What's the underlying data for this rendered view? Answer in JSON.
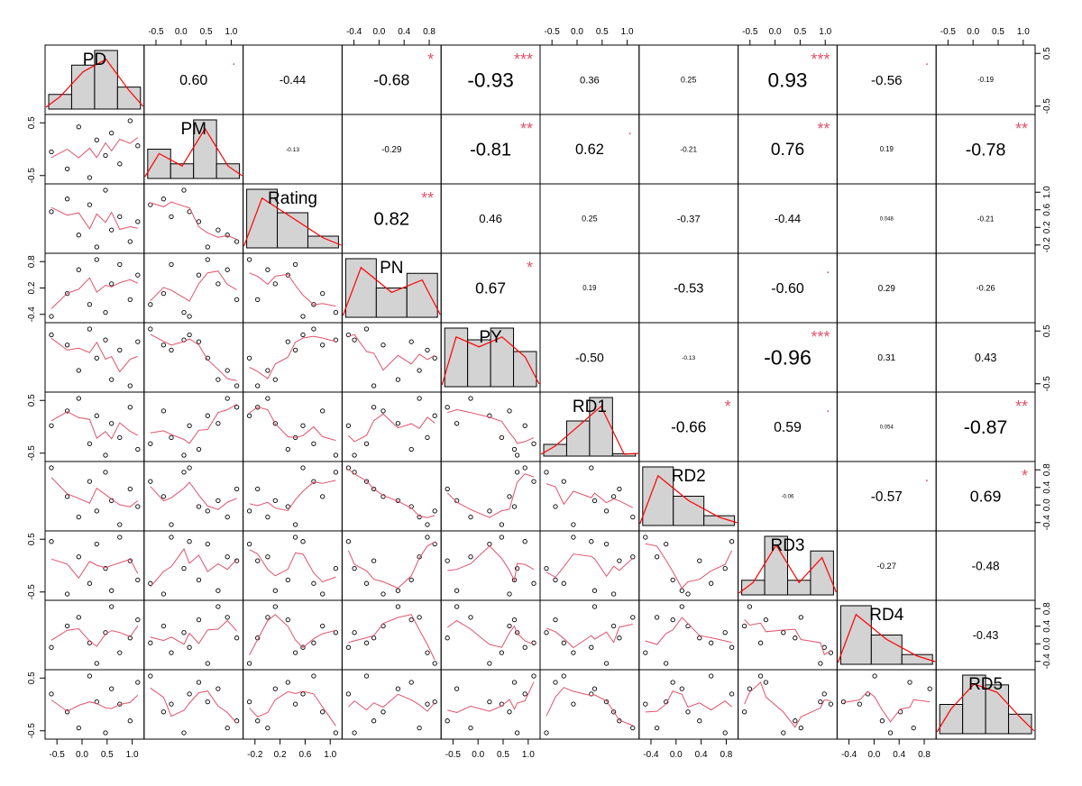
{
  "chart_data": {
    "type": "correlation-matrix",
    "variables": [
      "PD",
      "PM",
      "Rating",
      "PN",
      "PY",
      "RD1",
      "RD2",
      "RD3",
      "RD4",
      "RD5"
    ],
    "correlations": [
      {
        "i": 0,
        "j": 1,
        "value": "0.60",
        "stars": "."
      },
      {
        "i": 0,
        "j": 2,
        "value": "-0.44",
        "stars": ""
      },
      {
        "i": 0,
        "j": 3,
        "value": "-0.68",
        "stars": "*"
      },
      {
        "i": 0,
        "j": 4,
        "value": "-0.93",
        "stars": "***"
      },
      {
        "i": 0,
        "j": 5,
        "value": "0.36",
        "stars": ""
      },
      {
        "i": 0,
        "j": 6,
        "value": "0.25",
        "stars": ""
      },
      {
        "i": 0,
        "j": 7,
        "value": "0.93",
        "stars": "***"
      },
      {
        "i": 0,
        "j": 8,
        "value": "-0.56",
        "stars": "."
      },
      {
        "i": 0,
        "j": 9,
        "value": "-0.19",
        "stars": ""
      },
      {
        "i": 1,
        "j": 2,
        "value": "-0.13",
        "stars": ""
      },
      {
        "i": 1,
        "j": 3,
        "value": "-0.29",
        "stars": ""
      },
      {
        "i": 1,
        "j": 4,
        "value": "-0.81",
        "stars": "**"
      },
      {
        "i": 1,
        "j": 5,
        "value": "0.62",
        "stars": "."
      },
      {
        "i": 1,
        "j": 6,
        "value": "-0.21",
        "stars": ""
      },
      {
        "i": 1,
        "j": 7,
        "value": "0.76",
        "stars": "**"
      },
      {
        "i": 1,
        "j": 8,
        "value": "0.19",
        "stars": ""
      },
      {
        "i": 1,
        "j": 9,
        "value": "-0.78",
        "stars": "**"
      },
      {
        "i": 2,
        "j": 3,
        "value": "0.82",
        "stars": "**"
      },
      {
        "i": 2,
        "j": 4,
        "value": "0.46",
        "stars": ""
      },
      {
        "i": 2,
        "j": 5,
        "value": "0.25",
        "stars": ""
      },
      {
        "i": 2,
        "j": 6,
        "value": "-0.37",
        "stars": ""
      },
      {
        "i": 2,
        "j": 7,
        "value": "-0.44",
        "stars": ""
      },
      {
        "i": 2,
        "j": 8,
        "value": "0.048",
        "stars": ""
      },
      {
        "i": 2,
        "j": 9,
        "value": "-0.21",
        "stars": ""
      },
      {
        "i": 3,
        "j": 4,
        "value": "0.67",
        "stars": "*"
      },
      {
        "i": 3,
        "j": 5,
        "value": "0.19",
        "stars": ""
      },
      {
        "i": 3,
        "j": 6,
        "value": "-0.53",
        "stars": ""
      },
      {
        "i": 3,
        "j": 7,
        "value": "-0.60",
        "stars": "."
      },
      {
        "i": 3,
        "j": 8,
        "value": "0.29",
        "stars": ""
      },
      {
        "i": 3,
        "j": 9,
        "value": "-0.26",
        "stars": ""
      },
      {
        "i": 4,
        "j": 5,
        "value": "-0.50",
        "stars": ""
      },
      {
        "i": 4,
        "j": 6,
        "value": "-0.13",
        "stars": ""
      },
      {
        "i": 4,
        "j": 7,
        "value": "-0.96",
        "stars": "***"
      },
      {
        "i": 4,
        "j": 8,
        "value": "0.31",
        "stars": ""
      },
      {
        "i": 4,
        "j": 9,
        "value": "0.43",
        "stars": ""
      },
      {
        "i": 5,
        "j": 6,
        "value": "-0.66",
        "stars": "*"
      },
      {
        "i": 5,
        "j": 7,
        "value": "0.59",
        "stars": "."
      },
      {
        "i": 5,
        "j": 8,
        "value": "0.054",
        "stars": ""
      },
      {
        "i": 5,
        "j": 9,
        "value": "-0.87",
        "stars": "**"
      },
      {
        "i": 6,
        "j": 7,
        "value": "-0.06",
        "stars": ""
      },
      {
        "i": 6,
        "j": 8,
        "value": "-0.57",
        "stars": "."
      },
      {
        "i": 6,
        "j": 9,
        "value": "0.69",
        "stars": "*"
      },
      {
        "i": 7,
        "j": 8,
        "value": "-0.27",
        "stars": ""
      },
      {
        "i": 7,
        "j": 9,
        "value": "-0.48",
        "stars": ""
      },
      {
        "i": 8,
        "j": 9,
        "value": "-0.43",
        "stars": ""
      }
    ],
    "histograms": [
      [
        2,
        6,
        8,
        3
      ],
      [
        2,
        1,
        4,
        1
      ],
      [
        5,
        3,
        1
      ],
      [
        4,
        2,
        3
      ],
      [
        5,
        4,
        5,
        3
      ],
      [
        1,
        3,
        5,
        0.2
      ],
      [
        6,
        3,
        1
      ],
      [
        1,
        4,
        1,
        3
      ],
      [
        6,
        3,
        1
      ],
      [
        3,
        6,
        5,
        2
      ]
    ],
    "axis_ticks": [
      [
        "-0.5",
        "0.0",
        "0.5",
        "1.0"
      ],
      [
        "-0.5",
        "0.0",
        "0.5",
        "1.0"
      ],
      [
        "-0.2",
        "0.2",
        "0.6",
        "1.0"
      ],
      [
        "-0.4",
        "0.0",
        "0.4",
        "0.8"
      ],
      [
        "-0.5",
        "0.0",
        "0.5",
        "1.0"
      ],
      [
        "-0.5",
        "0.0",
        "0.5",
        "1.0"
      ],
      [
        "-0.4",
        "0.0",
        "0.4",
        "0.8"
      ],
      [
        "-0.5",
        "0.0",
        "0.5",
        "1.0"
      ],
      [
        "-0.4",
        "0.0",
        "0.4",
        "0.8"
      ],
      [
        "-0.5",
        "0.0",
        "0.5",
        "1.0"
      ]
    ],
    "axis_ticks_v": [
      [
        "-0.5",
        "0.5"
      ],
      [
        "-0.5",
        "0.5"
      ],
      [
        "-0.2",
        "0.2",
        "0.6",
        "1.0"
      ],
      [
        "-0.4",
        "0.2",
        "0.8"
      ],
      [
        "-0.5",
        "0.5"
      ],
      [
        "-0.5",
        "0.5"
      ],
      [
        "-0.4",
        "0.0",
        "0.4",
        "0.8"
      ],
      [
        "-0.5",
        "0.5"
      ],
      [
        "-0.4",
        "0.0",
        "0.4",
        "0.8"
      ],
      [
        "-0.5",
        "0.5"
      ]
    ],
    "bottom_axis_vars": [
      0,
      2,
      4,
      6,
      8
    ],
    "top_axis_vars": [
      1,
      3,
      5,
      7,
      9
    ],
    "left_axis_vars": [
      1,
      3,
      5,
      7,
      9
    ],
    "right_axis_vars": [
      0,
      2,
      4,
      6,
      8
    ],
    "observations": [
      [
        -0.62,
        0.05,
        0.31,
        -0.45,
        0.55,
        0.18,
        0.86,
        0.72,
        -0.08,
        0.33
      ],
      [
        -0.33,
        -0.42,
        0.62,
        0.07,
        0.27,
        0.58,
        0.14,
        -0.51,
        0.44,
        -0.15
      ],
      [
        -0.12,
        0.74,
        -0.25,
        0.61,
        -0.43,
        0.92,
        -0.37,
        0.36,
        0.65,
        -0.58
      ],
      [
        0.08,
        -0.66,
        0.48,
        -0.18,
        0.71,
        -0.31,
        0.52,
        -0.26,
        0.03,
        0.81
      ],
      [
        0.21,
        0.38,
        -0.54,
        0.84,
        -0.09,
        0.45,
        -0.22,
        0.66,
        -0.47,
        0.12
      ],
      [
        0.37,
        -0.05,
        0.83,
        -0.36,
        0.41,
        -0.62,
        0.75,
        0.09,
        0.28,
        -0.71
      ],
      [
        0.48,
        0.57,
        -0.13,
        0.29,
        -0.68,
        0.24,
        0.04,
        -0.43,
        0.91,
        0.47
      ],
      [
        0.63,
        -0.28,
        0.19,
        0.73,
        0.13,
        -0.14,
        -0.56,
        0.82,
        -0.21,
        0.06
      ],
      [
        0.82,
        0.91,
        -0.41,
        -0.07,
        -0.85,
        0.68,
        0.33,
        0.27,
        0.15,
        -0.39
      ],
      [
        0.96,
        0.22,
        0.07,
        0.49,
        0.36,
        -0.46,
        -0.11,
        -0.18,
        0.59,
        0.64
      ]
    ]
  }
}
